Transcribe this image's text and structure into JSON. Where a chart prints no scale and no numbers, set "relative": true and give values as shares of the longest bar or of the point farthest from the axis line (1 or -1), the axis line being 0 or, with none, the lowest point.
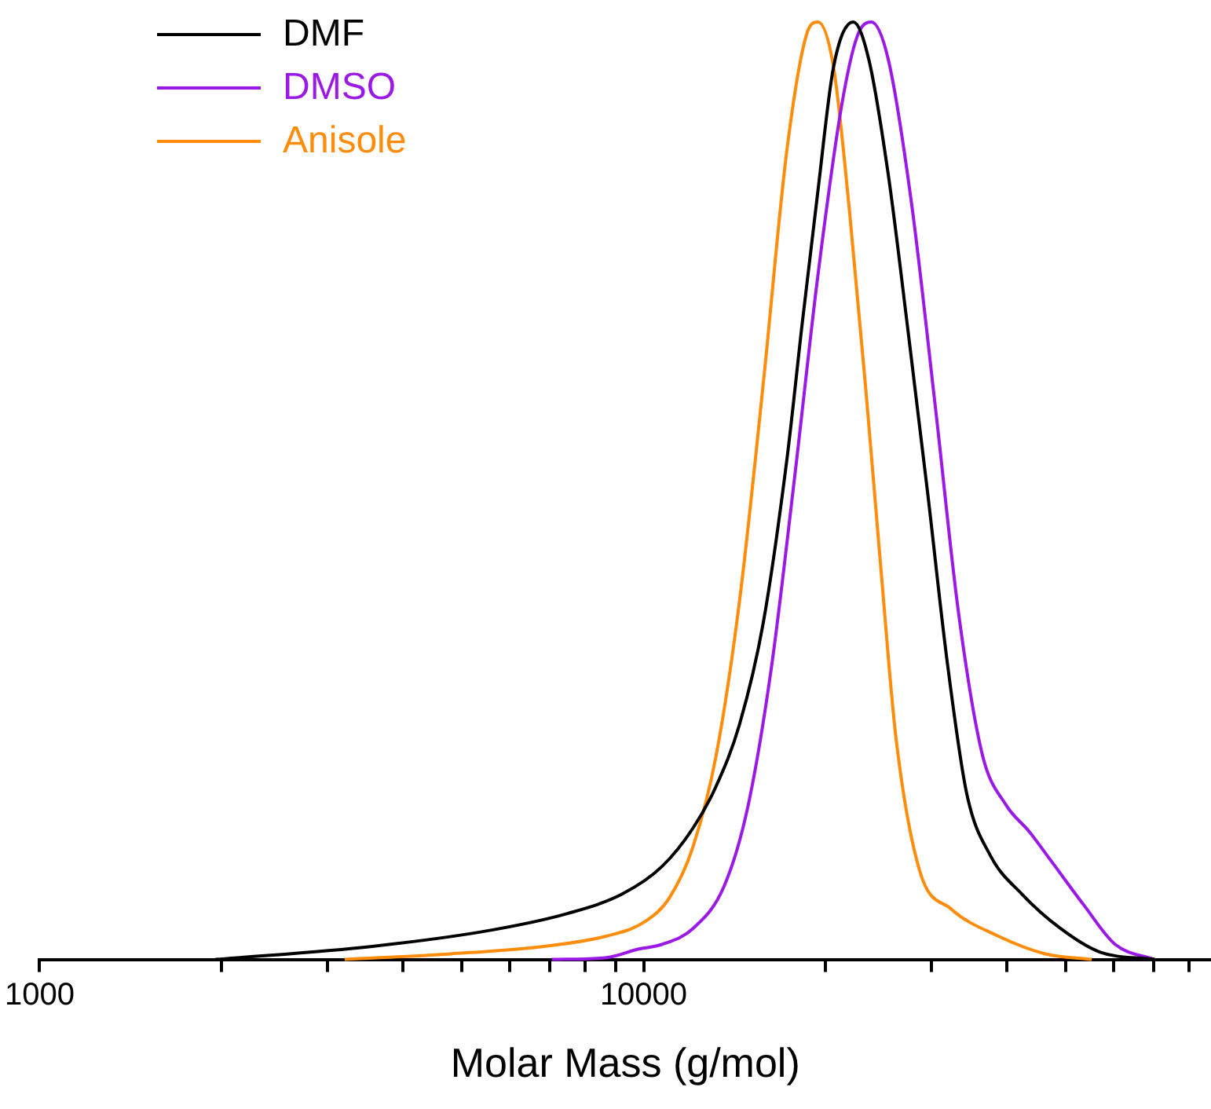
{
  "chart_data": {
    "type": "line",
    "xlabel": "Molar Mass (g/mol)",
    "relative": true,
    "log": "x",
    "xlim": [
      1000,
      87000
    ],
    "xticks": [
      1000,
      {
        "value": 2000,
        "label": null
      },
      {
        "value": 3000,
        "label": null
      },
      {
        "value": 4000,
        "label": null
      },
      {
        "value": 5000,
        "label": null
      },
      {
        "value": 6000,
        "label": null
      },
      {
        "value": 7000,
        "label": null
      },
      {
        "value": 8000,
        "label": null
      },
      {
        "value": 9000,
        "label": null
      },
      10000,
      {
        "value": 20000,
        "label": null
      },
      {
        "value": 30000,
        "label": null
      },
      {
        "value": 40000,
        "label": null
      },
      {
        "value": 50000,
        "label": null
      },
      {
        "value": 60000,
        "label": null
      },
      {
        "value": 70000,
        "label": null
      },
      {
        "value": 80000,
        "label": null
      }
    ],
    "tick_labels": "x",
    "legend": "top left",
    "marker": "none",
    "line_style": "solid",
    "grid": false,
    "series": [
      {
        "name": "DMF",
        "color": "#000000",
        "x": [
          1955,
          3554,
          5560,
          7480,
          9230,
          10720,
          12070,
          13190,
          14420,
          15780,
          17260,
          18320,
          19440,
          20630,
          22240,
          23600,
          25420,
          27390,
          29520,
          31830,
          34280,
          37500,
          42270,
          49030,
          56890,
          70150
        ],
        "values": [
          0,
          0.014,
          0.031,
          0.049,
          0.07,
          0.099,
          0.14,
          0.185,
          0.251,
          0.359,
          0.532,
          0.68,
          0.82,
          0.952,
          1,
          0.96,
          0.837,
          0.672,
          0.499,
          0.317,
          0.177,
          0.111,
          0.07,
          0.033,
          0.008,
          0
        ]
      },
      {
        "name": "DMSO",
        "color": "#9b19e6",
        "x": [
          7050,
          8690,
          9790,
          10720,
          12070,
          13590,
          14860,
          16260,
          17790,
          19440,
          21280,
          22590,
          23830,
          25420,
          27810,
          30420,
          33270,
          36400,
          39800,
          43550,
          47560,
          53580,
          60390,
          70150
        ],
        "values": [
          0,
          0.002,
          0.011,
          0.016,
          0.033,
          0.078,
          0.161,
          0.309,
          0.515,
          0.73,
          0.911,
          0.985,
          1,
          0.96,
          0.804,
          0.589,
          0.367,
          0.218,
          0.165,
          0.136,
          0.103,
          0.058,
          0.016,
          0
        ]
      },
      {
        "name": "Anisole",
        "color": "#ff8c0a",
        "x": [
          3200,
          4790,
          6840,
          8690,
          10090,
          11040,
          12070,
          13190,
          14420,
          15780,
          17260,
          18580,
          19440,
          20630,
          21950,
          23290,
          24720,
          26190,
          28640,
          32280,
          38630,
          46240,
          55210
        ],
        "values": [
          0,
          0.006,
          0.014,
          0.025,
          0.041,
          0.066,
          0.12,
          0.218,
          0.383,
          0.614,
          0.862,
          0.985,
          1,
          0.952,
          0.795,
          0.614,
          0.416,
          0.235,
          0.095,
          0.054,
          0.025,
          0.006,
          0
        ]
      }
    ]
  }
}
